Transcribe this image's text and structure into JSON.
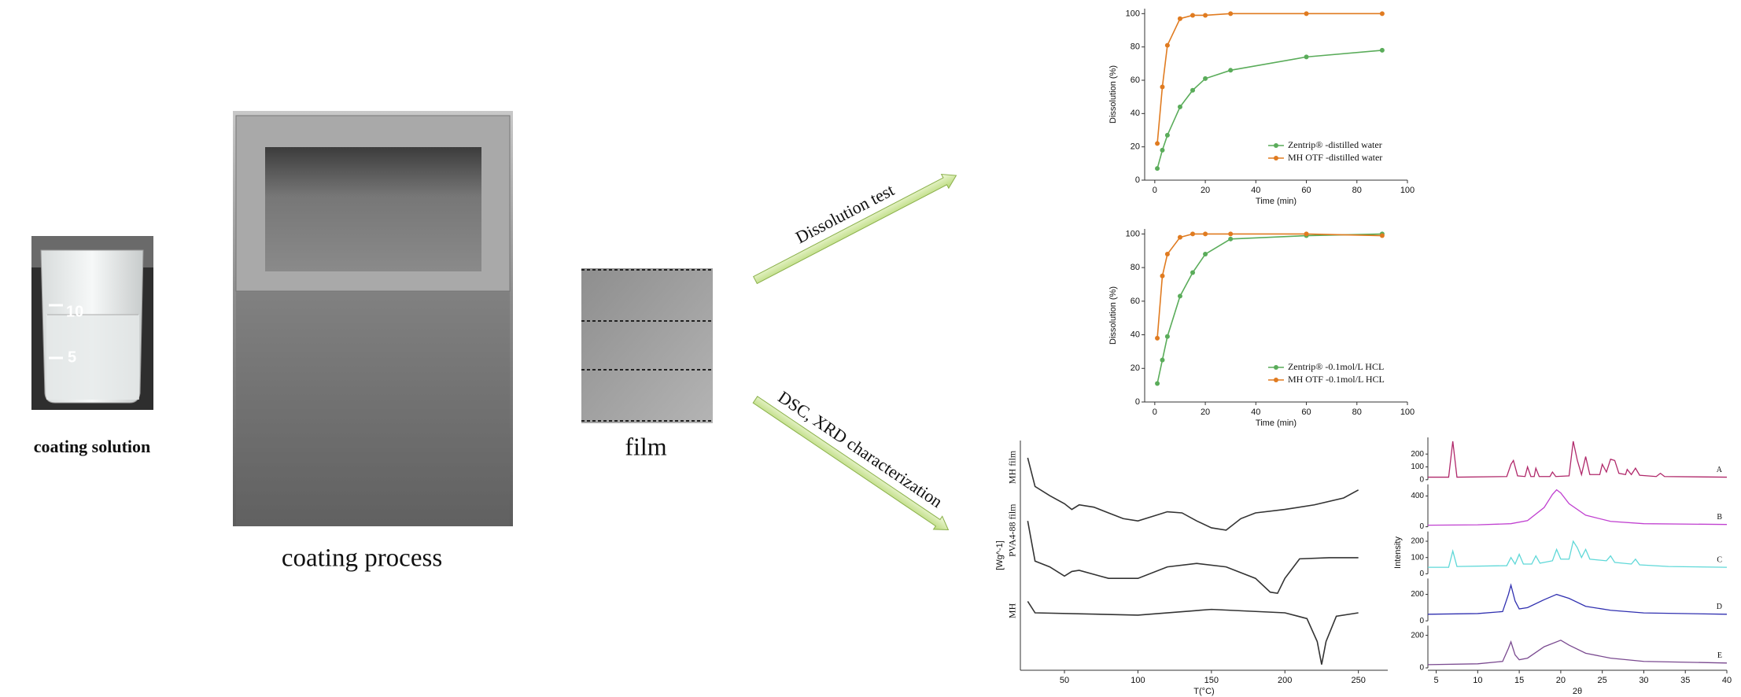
{
  "labels": {
    "coating_solution": "coating solution",
    "coating_process": "coating process",
    "film": "film",
    "arrow_dissolution": "Dissolution test",
    "arrow_characterization": "DSC, XRD characterization",
    "beaker_marks": [
      "10",
      "5"
    ]
  },
  "chart_data": [
    {
      "type": "line",
      "x_label": "Time (min)",
      "y_label": "Dissolution (%)",
      "x": [
        1,
        3,
        5,
        10,
        15,
        20,
        30,
        60,
        90
      ],
      "xlim": [
        -4,
        100
      ],
      "xticks": [
        0,
        20,
        40,
        60,
        80,
        100
      ],
      "ylim": [
        0,
        103
      ],
      "yticks": [
        0,
        20,
        40,
        60,
        80,
        100
      ],
      "markers": true,
      "legend": "lower right",
      "series": [
        {
          "name": "Zentrip® -distilled water",
          "color": "#5aac5a",
          "values": [
            7,
            18,
            27,
            44,
            54,
            61,
            66,
            74,
            78
          ]
        },
        {
          "name": "MH OTF -distilled water",
          "color": "#e07b20",
          "values": [
            22,
            56,
            81,
            97,
            99,
            99,
            100,
            100,
            100
          ]
        }
      ]
    },
    {
      "type": "line",
      "x_label": "Time (min)",
      "y_label": "Dissolution (%)",
      "x": [
        1,
        3,
        5,
        10,
        15,
        20,
        30,
        60,
        90
      ],
      "xlim": [
        -4,
        100
      ],
      "xticks": [
        0,
        20,
        40,
        60,
        80,
        100
      ],
      "ylim": [
        0,
        103
      ],
      "yticks": [
        0,
        20,
        40,
        60,
        80,
        100
      ],
      "markers": true,
      "legend": "lower right",
      "series": [
        {
          "name": "Zentrip® -0.1mol/L HCL",
          "color": "#5aac5a",
          "values": [
            11,
            25,
            39,
            63,
            77,
            88,
            97,
            99,
            100
          ]
        },
        {
          "name": "MH OTF -0.1mol/L HCL",
          "color": "#e07b20",
          "values": [
            38,
            75,
            88,
            98,
            100,
            100,
            100,
            100,
            99
          ]
        }
      ]
    },
    {
      "type": "line",
      "x_label": "T(°C)",
      "y_label": "[Wg^-1]",
      "xlim": [
        20,
        270
      ],
      "xticks": [
        50,
        100,
        150,
        200,
        250
      ],
      "ylim": [
        0,
        200
      ],
      "series": [
        {
          "name": "MH film",
          "color": "#333333",
          "x": [
            25,
            30,
            40,
            50,
            55,
            60,
            70,
            80,
            90,
            100,
            110,
            120,
            130,
            140,
            150,
            160,
            170,
            180,
            200,
            220,
            240,
            250
          ],
          "values": [
            185,
            160,
            152,
            145,
            140,
            144,
            142,
            137,
            132,
            130,
            134,
            138,
            137,
            130,
            124,
            122,
            132,
            137,
            140,
            144,
            150,
            157
          ]
        },
        {
          "name": "PVA4-88 film",
          "color": "#333333",
          "x": [
            25,
            30,
            40,
            50,
            55,
            60,
            80,
            100,
            120,
            140,
            160,
            180,
            190,
            195,
            200,
            210,
            230,
            250
          ],
          "values": [
            130,
            95,
            90,
            82,
            86,
            87,
            80,
            80,
            90,
            93,
            90,
            80,
            68,
            67,
            80,
            97,
            98,
            98
          ]
        },
        {
          "name": "MH",
          "color": "#333333",
          "x": [
            25,
            30,
            100,
            150,
            200,
            215,
            222,
            225,
            228,
            235,
            250
          ],
          "values": [
            60,
            50,
            48,
            53,
            50,
            45,
            25,
            5,
            25,
            47,
            50
          ]
        }
      ]
    },
    {
      "type": "stacked-line",
      "x_label": "2θ",
      "y_label": "Intensity",
      "xlim": [
        4,
        40
      ],
      "xticks": [
        5,
        10,
        15,
        20,
        25,
        30,
        35,
        40
      ],
      "series": [
        {
          "name": "A",
          "color": "#b0286a",
          "ylim": [
            0,
            330
          ],
          "yticks": [
            0,
            100,
            200
          ],
          "x": [
            4,
            6.5,
            7,
            7.5,
            13.5,
            14,
            14.3,
            14.8,
            15.7,
            16,
            16.4,
            16.8,
            17,
            17.4,
            18.7,
            19,
            19.4,
            21,
            21.5,
            22,
            22.5,
            23,
            23.5,
            24.7,
            25,
            25.5,
            26,
            26.5,
            27,
            27.8,
            28,
            28.5,
            29,
            29.5,
            31.5,
            32,
            32.5,
            40
          ],
          "values": [
            20,
            20,
            300,
            20,
            25,
            120,
            150,
            30,
            25,
            100,
            25,
            25,
            90,
            25,
            25,
            60,
            25,
            30,
            300,
            150,
            40,
            180,
            40,
            40,
            120,
            60,
            160,
            150,
            50,
            40,
            80,
            40,
            90,
            35,
            25,
            50,
            25,
            20
          ]
        },
        {
          "name": "B",
          "color": "#c040d0",
          "ylim": [
            0,
            550
          ],
          "yticks": [
            0,
            400
          ],
          "x": [
            4,
            10,
            14,
            16,
            18,
            19,
            19.5,
            20,
            21,
            23,
            26,
            30,
            40
          ],
          "values": [
            20,
            25,
            40,
            80,
            250,
            420,
            480,
            440,
            300,
            150,
            70,
            40,
            30
          ]
        },
        {
          "name": "C",
          "color": "#5fd8d8",
          "ylim": [
            0,
            260
          ],
          "yticks": [
            0,
            100,
            200
          ],
          "x": [
            4,
            6.5,
            7,
            7.5,
            13.5,
            14,
            14.5,
            15,
            15.5,
            16.5,
            17,
            17.5,
            19,
            19.5,
            20,
            21,
            21.5,
            22,
            22.5,
            23,
            23.5,
            25.5,
            26,
            26.5,
            28.5,
            29,
            29.5,
            33,
            40
          ],
          "values": [
            40,
            40,
            140,
            45,
            50,
            100,
            60,
            120,
            60,
            60,
            110,
            65,
            80,
            150,
            90,
            90,
            200,
            160,
            100,
            150,
            90,
            80,
            110,
            70,
            60,
            90,
            55,
            45,
            40
          ]
        },
        {
          "name": "D",
          "color": "#3030b0",
          "ylim": [
            0,
            320
          ],
          "yticks": [
            0,
            200
          ],
          "x": [
            4,
            10,
            13,
            13.7,
            14,
            14.5,
            15,
            16,
            18,
            19.5,
            21,
            23,
            26,
            30,
            40
          ],
          "values": [
            50,
            55,
            70,
            200,
            270,
            150,
            90,
            100,
            160,
            200,
            170,
            110,
            80,
            60,
            50
          ]
        },
        {
          "name": "E",
          "color": "#7a4a90",
          "ylim": [
            0,
            260
          ],
          "yticks": [
            0,
            200
          ],
          "x": [
            4,
            10,
            13,
            13.7,
            14,
            14.5,
            15,
            16,
            18,
            20,
            21,
            23,
            26,
            30,
            40
          ],
          "values": [
            20,
            25,
            40,
            120,
            160,
            80,
            50,
            60,
            130,
            170,
            140,
            90,
            60,
            40,
            30
          ]
        }
      ]
    }
  ]
}
